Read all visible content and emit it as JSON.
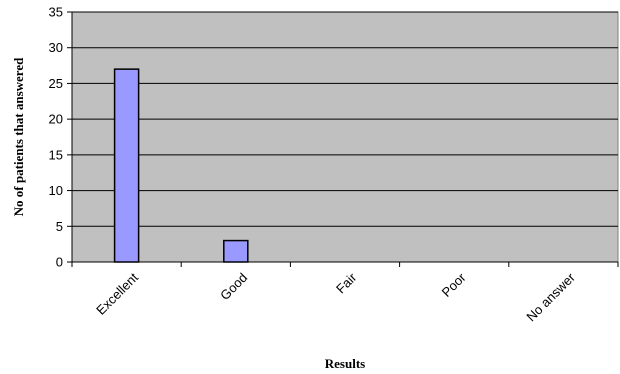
{
  "chart_data": {
    "type": "bar",
    "categories": [
      "Excellent",
      "Good",
      "Fair",
      "Poor",
      "No answer"
    ],
    "values": [
      27,
      3,
      0,
      0,
      0
    ],
    "title": "",
    "xlabel": "Results",
    "ylabel": "No of patients that answered",
    "ylim": [
      0,
      35
    ],
    "yticks": [
      0,
      5,
      10,
      15,
      20,
      25,
      30,
      35
    ],
    "grid": true,
    "legend": "none",
    "colors": {
      "plot_background": "#c0c0c0",
      "bar_fill": "#9999ff",
      "bar_stroke": "#000000",
      "gridline": "#000000"
    }
  }
}
